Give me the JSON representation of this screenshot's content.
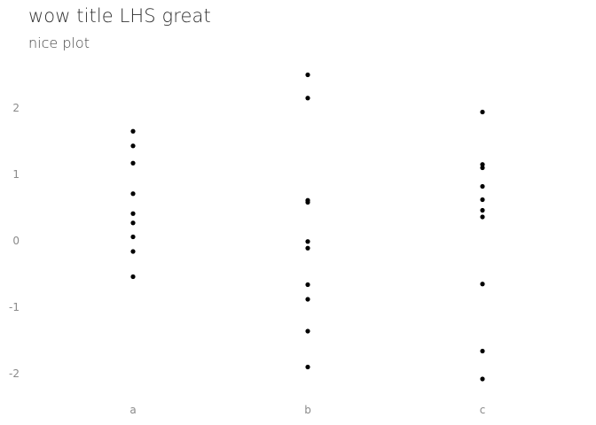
{
  "chart_data": {
    "type": "scatter",
    "title": "wow title LHS great",
    "subtitle": "nice plot",
    "xlabel": "",
    "ylabel": "",
    "categories": [
      "a",
      "b",
      "c"
    ],
    "yticks": [
      2,
      1,
      0,
      -1,
      -2
    ],
    "ytick_labels": [
      "2",
      "1",
      "0",
      "-1",
      "-2"
    ],
    "ylim": [
      -2.3,
      2.8
    ],
    "grid": false,
    "legend": "none",
    "point_color": "#000000",
    "points": [
      {
        "x": "a",
        "y": 1.65
      },
      {
        "x": "a",
        "y": 1.43
      },
      {
        "x": "a",
        "y": 1.17
      },
      {
        "x": "a",
        "y": 0.71
      },
      {
        "x": "a",
        "y": 0.41
      },
      {
        "x": "a",
        "y": 0.27
      },
      {
        "x": "a",
        "y": 0.06
      },
      {
        "x": "a",
        "y": -0.16
      },
      {
        "x": "a",
        "y": -0.54
      },
      {
        "x": "b",
        "y": 2.5
      },
      {
        "x": "b",
        "y": 2.15
      },
      {
        "x": "b",
        "y": 0.61
      },
      {
        "x": "b",
        "y": 0.58
      },
      {
        "x": "b",
        "y": -0.01
      },
      {
        "x": "b",
        "y": -0.11
      },
      {
        "x": "b",
        "y": -0.66
      },
      {
        "x": "b",
        "y": -0.88
      },
      {
        "x": "b",
        "y": -1.36
      },
      {
        "x": "b",
        "y": -1.9
      },
      {
        "x": "c",
        "y": 1.94
      },
      {
        "x": "c",
        "y": 1.15
      },
      {
        "x": "c",
        "y": 1.1
      },
      {
        "x": "c",
        "y": 0.82
      },
      {
        "x": "c",
        "y": 0.62
      },
      {
        "x": "c",
        "y": 0.46
      },
      {
        "x": "c",
        "y": 0.36
      },
      {
        "x": "c",
        "y": -0.65
      },
      {
        "x": "c",
        "y": -1.66
      },
      {
        "x": "c",
        "y": -2.08
      }
    ]
  }
}
